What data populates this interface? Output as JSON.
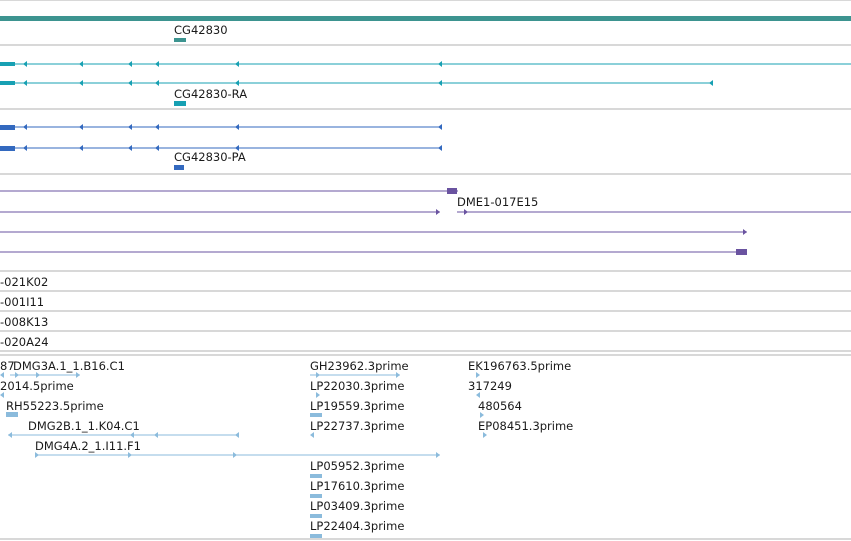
{
  "colors": {
    "gene": "#3d9490",
    "transcript": "#17a0b3",
    "cds": "#3369bf",
    "clone": "#6a53a0",
    "est": "#8bbbdc",
    "separator": "#b0b0b0"
  },
  "gene_track": {
    "gene_label": "CG42830",
    "transcript_label": "CG42830-RA",
    "protein_label": "CG42830-PA"
  },
  "clone_track": {
    "labels": [
      "DME1-017E15",
      "-021K02",
      "-001I11",
      "-008K13",
      "-020A24"
    ]
  },
  "est_track": {
    "labels": [
      "87",
      "DMG3A.1_1.B16.C1",
      "GH23962.3prime",
      "EK196763.5prime",
      "2014.5prime",
      "LP22030.3prime",
      "317249",
      "RH55223.5prime",
      "LP19559.3prime",
      "480564",
      "DMG2B.1_1.K04.C1",
      "LP22737.3prime",
      "EP08451.3prime",
      "DMG4A.2_1.I11.F1",
      "LP05952.3prime",
      "LP17610.3prime",
      "LP03409.3prime",
      "LP22404.3prime"
    ]
  }
}
